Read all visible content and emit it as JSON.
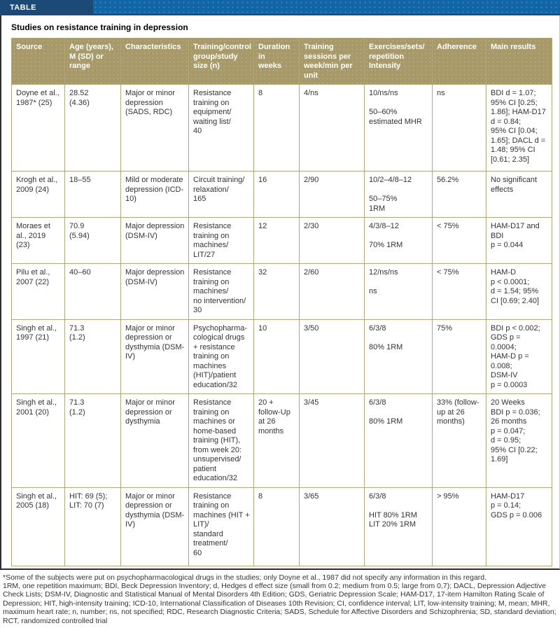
{
  "titlebar": {
    "label": "TABLE"
  },
  "table": {
    "caption": "Studies on resistance training in depression",
    "columns": [
      "Source",
      "Age (years),\nM (SD) or\nrange",
      "Characteristics",
      "Training/control\ngroup/study\nsize (n)",
      "Duration\nin\nweeks",
      "Training\nsessions per\nweek/min per\nunit",
      "Exercises/sets/\nrepetition\nIntensity",
      "Adherence",
      "Main results"
    ],
    "rows": [
      [
        "Doyne et al., 1987* (25)",
        "28.52\n(4.36)",
        "Major or minor depression (SADS, RDC)",
        "Resistance training on equipment/\nwaiting list/\n40",
        "8",
        "4/ns",
        "10/ns/ns\n\n50–60% estimated MHR",
        "ns",
        "BDI d = 1.07; 95% CI [0.25; 1.86]; HAM-D17 d = 0.84;\n95% CI [0.04; 1.65]; DACL d = 1.48; 95% CI [0.61; 2.35]"
      ],
      [
        "Krogh et al., 2009 (24)",
        "18–55",
        "Mild or moderate depression (ICD-10)",
        "Circuit training/\nrelaxation/\n165",
        "16",
        "2/90",
        "10/2–4/8–12\n\n50–75%\n1RM",
        "56.2%",
        "No significant effects"
      ],
      [
        "Moraes et al., 2019 (23)",
        "70.9\n(5.94)",
        "Major depression (DSM-IV)",
        "Resistance training on machines/\nLIT/27",
        "12",
        "2/30",
        "4/3/8–12\n\n70% 1RM",
        "< 75%",
        "HAM-D17 and BDI\np = 0.044"
      ],
      [
        "Pilu et al., 2007 (22)",
        "40–60",
        "Major depression (DSM-IV)",
        "Resistance training on machines/\nno intervention/\n30",
        "32",
        "2/60",
        "12/ns/ns\n\nns",
        "< 75%",
        "HAM-D\np < 0.0001;\nd = 1.54; 95% CI [0.69; 2.40]"
      ],
      [
        "Singh et al., 1997 (21)",
        "71.3\n(1.2)",
        "Major or minor depression or dysthymia (DSM-IV)",
        "Psychopharma-\ncological drugs + resistance training on machines (HIT)/patient education/32",
        "10",
        "3/50",
        "6/3/8\n\n80% 1RM",
        "75%",
        "BDI p < 0.002;\nGDS p = 0.0004;\nHAM-D p = 0.008;\nDSM-IV\np = 0.0003"
      ],
      [
        "Singh et al., 2001 (20)",
        "71.3\n(1.2)",
        "Major or minor depression or dysthymia",
        "Resistance training on machines or home-based training (HIT), from week 20: unsupervised/\npatient education/32",
        "20 + follow-Up at 26 months",
        "3/45",
        "6/3/8\n\n80% 1RM",
        "33% (follow-up at 26 months)",
        "20 Weeks\nBDI p = 0.036;\n26 months\np = 0.047;\nd = 0.95;\n95% CI [0.22; 1.69]"
      ],
      [
        "Singh et al., 2005 (18)",
        "HIT: 69 (5); LIT: 70 (7)",
        "Major or minor depression or dysthymia (DSM-IV)",
        "Resistance training on machines (HIT + LIT)/\nstandard treatment/\n60",
        "8",
        "3/65",
        "6/3/8\n\nHIT 80% 1RM\nLIT 20% 1RM",
        "> 95%",
        "HAM-D17\np = 0.14;\nGDS p = 0.006"
      ]
    ]
  },
  "footnotes": {
    "note": "*Some of the subjects were put on psychopharmacological drugs in the studies; only Doyne et al., 1987 did not specify any information in this regard.",
    "abbreviations": "1RM, one repetition maximum; BDI, Beck Depression Inventory; d, Hedges d effect size (small from 0.2; medium from 0.5; large from 0,7); DACL, Depression Adjective Check Lists; DSM-IV, Diagnostic and Statistical Manual of Mental Disorders 4th Edition; GDS, Geriatric Depression Scale; HAM-D17, 17-item Hamilton Rating Scale of Depression; HIT, high-intensity training; ICD-10, International Classification of Diseases 10th Revision; CI, confidence interval; LIT, low-intensity training; M, mean; MHR, maximum heart rate; n, number; ns, not specified; RDC, Research Diagnostic Criteria; SADS, Schedule for Affective Disorders and Schizophrenia; SD, standard deviation; RCT, randomized controlled trial"
  }
}
